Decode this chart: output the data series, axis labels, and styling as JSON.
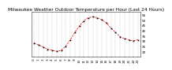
{
  "title": "Milwaukee Weather Outdoor Temperature per Hour (Last 24 Hours)",
  "hours": [
    0,
    1,
    2,
    3,
    4,
    5,
    6,
    7,
    8,
    9,
    10,
    11,
    12,
    13,
    14,
    15,
    16,
    17,
    18,
    19,
    20,
    21,
    22,
    23
  ],
  "temps": [
    28,
    26,
    24,
    22,
    21,
    20,
    21,
    25,
    31,
    38,
    44,
    49,
    52,
    53,
    52,
    50,
    47,
    42,
    38,
    34,
    32,
    31,
    30,
    31
  ],
  "line_color": "#dd0000",
  "marker_color": "#000000",
  "background_color": "#ffffff",
  "grid_color": "#aaaaaa",
  "ylim_min": 15,
  "ylim_max": 58,
  "title_fontsize": 4.2,
  "tick_fontsize": 3.0,
  "yticks": [
    20,
    25,
    30,
    35,
    40,
    45,
    50,
    55
  ]
}
